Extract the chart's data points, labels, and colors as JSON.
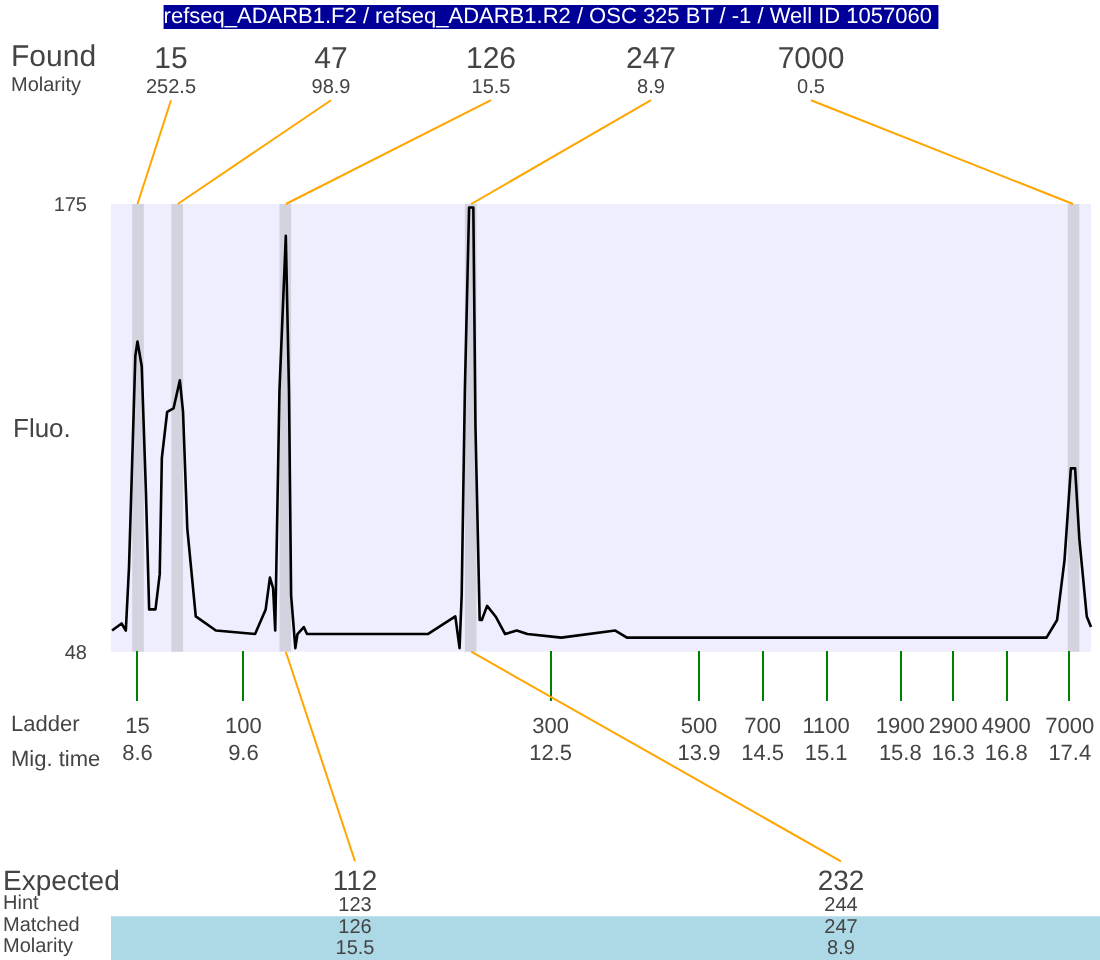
{
  "chart_data": {
    "type": "line",
    "title": "refseq_ADARB1.F2 / refseq_ADARB1.R2 / OSC 325 BT / -1  / Well ID 1057060",
    "xlabel": "Mig. time",
    "ylabel": "Fluo.",
    "xlim": [
      8.35,
      17.6
    ],
    "xticks": [
      8.6,
      9.6,
      12.5,
      13.9,
      14.5,
      15.1,
      15.8,
      16.3,
      16.8,
      17.4
    ],
    "ylim": [
      48,
      175
    ],
    "yticks": [
      48,
      175
    ],
    "grid": false,
    "marker": "none",
    "line_style": "solid",
    "series": [
      {
        "color": "#000000",
        "x": [
          8.36,
          8.45,
          8.49,
          8.52,
          8.58,
          8.6,
          8.64,
          8.68,
          8.71,
          8.77,
          8.81,
          8.83,
          8.88,
          8.94,
          9.0,
          9.03,
          9.07,
          9.15,
          9.34,
          9.71,
          9.81,
          9.85,
          9.88,
          9.9,
          9.94,
          10.0,
          10.03,
          10.05,
          10.09,
          10.11,
          10.17,
          10.2,
          10.77,
          11.34,
          11.6,
          11.64,
          11.66,
          11.69,
          11.73,
          11.77,
          11.79,
          11.83,
          11.85,
          11.9,
          11.98,
          12.07,
          12.18,
          12.28,
          12.6,
          13.11,
          13.22,
          14.92,
          16.43,
          17.18,
          17.28,
          17.35,
          17.41,
          17.45,
          17.49,
          17.56,
          17.6
        ],
        "values": [
          54,
          56,
          54,
          72,
          132,
          136,
          129,
          93,
          60,
          60,
          70,
          103,
          116,
          117,
          125,
          116,
          83,
          58,
          54,
          53,
          60,
          69,
          66,
          54,
          122,
          166,
          122,
          64,
          49,
          53,
          55,
          53,
          53,
          53,
          58,
          49,
          64,
          122,
          174,
          174,
          112,
          57,
          57,
          61,
          58,
          53,
          54,
          53,
          52,
          54,
          52,
          52,
          52,
          52,
          57,
          74,
          100,
          100,
          80,
          58,
          55
        ]
      }
    ],
    "bands": [
      {
        "axis": "x",
        "from": 8.55,
        "to": 8.66,
        "color": "#d3d3e0"
      },
      {
        "axis": "x",
        "from": 8.92,
        "to": 9.03,
        "color": "#d3d3e0"
      },
      {
        "axis": "x",
        "from": 9.94,
        "to": 10.05,
        "color": "#d3d3e0"
      },
      {
        "axis": "x",
        "from": 11.69,
        "to": 11.8,
        "color": "#d3d3e0"
      },
      {
        "axis": "x",
        "from": 17.38,
        "to": 17.49,
        "color": "#d3d3e0"
      }
    ],
    "annotations": [
      "Found",
      "Molarity",
      {
        "text": "15",
        "x": 8.6,
        "y": 175
      },
      "252.5",
      {
        "text": "47",
        "x": 8.98,
        "y": 175
      },
      "98.9",
      {
        "text": "126",
        "x": 10.0,
        "y": 175
      },
      "15.5",
      {
        "text": "247",
        "x": 11.75,
        "y": 175
      },
      "8.9",
      {
        "text": "7000",
        "x": 17.43,
        "y": 175
      },
      "0.5",
      "Ladder",
      "15",
      "100",
      "300",
      "500",
      "700",
      "1100",
      "1900",
      "2900",
      "4900",
      "7000",
      "Expected",
      "Hint",
      "Matched",
      "Molarity",
      {
        "text": "112",
        "x": 10.0,
        "y": 48
      },
      "123",
      "126",
      "15.5",
      {
        "text": "232",
        "x": 11.75,
        "y": 48
      },
      "244",
      "247",
      "8.9"
    ]
  }
}
